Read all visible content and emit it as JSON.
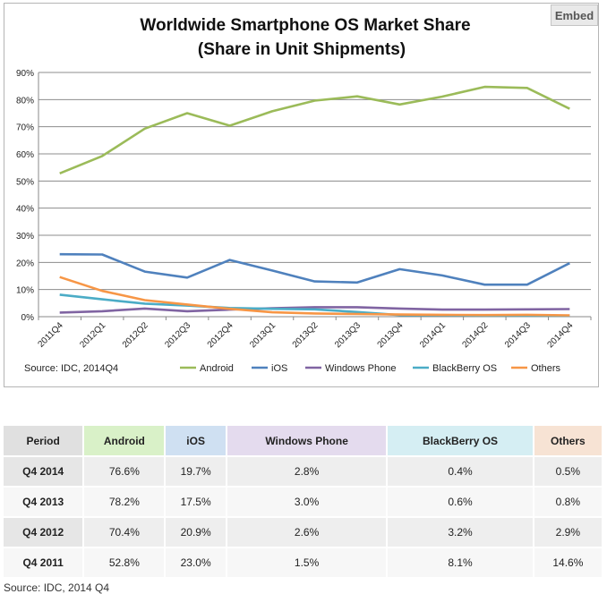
{
  "embed_label": "Embed",
  "chart_data": {
    "type": "line",
    "title": "Worldwide Smartphone OS Market Share",
    "subtitle": "(Share in Unit Shipments)",
    "source": "Source: IDC, 2014Q4",
    "categories": [
      "2011Q4",
      "2012Q1",
      "2012Q2",
      "2012Q3",
      "2012Q4",
      "2013Q1",
      "2013Q2",
      "2013Q3",
      "2013Q4",
      "2014Q1",
      "2014Q2",
      "2014Q3",
      "2014Q4"
    ],
    "y_ticks": [
      "0%",
      "10%",
      "20%",
      "30%",
      "40%",
      "50%",
      "60%",
      "70%",
      "80%",
      "90%"
    ],
    "ylim": [
      0,
      90
    ],
    "grid": true,
    "legend_position": "bottom",
    "series": [
      {
        "name": "Android",
        "color": "#9bbb59",
        "values": [
          52.8,
          59.2,
          69.3,
          75.0,
          70.4,
          75.7,
          79.6,
          81.2,
          78.2,
          81.1,
          84.7,
          84.3,
          76.6
        ]
      },
      {
        "name": "iOS",
        "color": "#4f81bd",
        "values": [
          23.0,
          22.9,
          16.6,
          14.4,
          20.9,
          17.0,
          13.0,
          12.6,
          17.5,
          15.2,
          11.8,
          11.8,
          19.7
        ]
      },
      {
        "name": "Windows Phone",
        "color": "#8064a2",
        "values": [
          1.5,
          2.0,
          3.0,
          2.0,
          2.6,
          3.1,
          3.5,
          3.5,
          3.0,
          2.6,
          2.6,
          2.7,
          2.8
        ]
      },
      {
        "name": "BlackBerry OS",
        "color": "#4bacc6",
        "values": [
          8.1,
          6.4,
          4.8,
          4.1,
          3.2,
          2.9,
          2.7,
          1.7,
          0.6,
          0.5,
          0.4,
          0.4,
          0.4
        ]
      },
      {
        "name": "Others",
        "color": "#f79646",
        "values": [
          14.6,
          9.5,
          6.1,
          4.5,
          2.9,
          1.6,
          1.2,
          1.0,
          0.8,
          0.7,
          0.6,
          0.7,
          0.5
        ]
      }
    ]
  },
  "table": {
    "headers": [
      {
        "label": "Period",
        "bg": "#e0e0e0"
      },
      {
        "label": "Android",
        "bg": "#d9f1c8"
      },
      {
        "label": "iOS",
        "bg": "#cfe0f2"
      },
      {
        "label": "Windows Phone",
        "bg": "#e4dbee"
      },
      {
        "label": "BlackBerry OS",
        "bg": "#d5eef3"
      },
      {
        "label": "Others",
        "bg": "#f7e3d4"
      }
    ],
    "rows": [
      [
        "Q4 2014",
        "76.6%",
        "19.7%",
        "2.8%",
        "0.4%",
        "0.5%"
      ],
      [
        "Q4 2013",
        "78.2%",
        "17.5%",
        "3.0%",
        "0.6%",
        "0.8%"
      ],
      [
        "Q4 2012",
        "70.4%",
        "20.9%",
        "2.6%",
        "3.2%",
        "2.9%"
      ],
      [
        "Q4 2011",
        "52.8%",
        "23.0%",
        "1.5%",
        "8.1%",
        "14.6%"
      ]
    ],
    "source": "Source: IDC, 2014 Q4"
  }
}
